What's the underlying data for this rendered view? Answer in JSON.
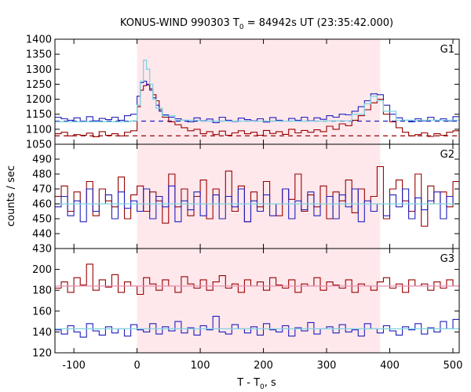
{
  "chart_data": {
    "type": "line",
    "title": "KONUS-WIND 990303 T",
    "title_sub": "0",
    "title_rest": " = 84942s UT (23:35:42.000)",
    "xlabel": "T - T",
    "xlabel_sub": "0",
    "xlabel_rest": ", s",
    "ylabel": "counts / sec",
    "xlim": [
      -130,
      510
    ],
    "x_ticks": [
      -100,
      0,
      100,
      200,
      300,
      400,
      500
    ],
    "x_tick_labels": [
      "-100",
      "0",
      "100",
      "200",
      "300",
      "400",
      "500"
    ],
    "shaded_region": [
      0,
      385
    ],
    "colors": {
      "red": "#990000",
      "blue": "#1f1fbf",
      "fit": "#7fd4e0",
      "fit_red": "#e88fb0",
      "shade": "#ffe8ec"
    },
    "panels": [
      {
        "name": "G1",
        "ylim": [
          1050,
          1400
        ],
        "y_ticks": [
          1050,
          1100,
          1150,
          1200,
          1250,
          1300,
          1350,
          1400
        ],
        "y_tick_labels": [
          "1050",
          "1100",
          "1150",
          "1200",
          "1250",
          "1300",
          "1350",
          "1400"
        ],
        "background_levels": {
          "red": 1078,
          "blue": 1127
        },
        "series": [
          {
            "color": "red",
            "x": [
              -130,
              -120,
              -110,
              -100,
              -90,
              -80,
              -70,
              -60,
              -50,
              -40,
              -30,
              -20,
              -10,
              0,
              5,
              10,
              15,
              20,
              25,
              30,
              35,
              40,
              50,
              60,
              70,
              80,
              90,
              100,
              110,
              120,
              130,
              140,
              150,
              160,
              170,
              180,
              190,
              200,
              210,
              220,
              230,
              240,
              250,
              260,
              270,
              280,
              290,
              300,
              310,
              320,
              330,
              340,
              350,
              360,
              370,
              380,
              390,
              400,
              410,
              420,
              430,
              440,
              450,
              460,
              470,
              480,
              490,
              500
            ],
            "y": [
              1085,
              1090,
              1078,
              1082,
              1080,
              1087,
              1075,
              1092,
              1080,
              1085,
              1078,
              1090,
              1095,
              1175,
              1230,
              1245,
              1250,
              1235,
              1215,
              1195,
              1165,
              1140,
              1125,
              1115,
              1105,
              1095,
              1100,
              1085,
              1092,
              1082,
              1094,
              1080,
              1088,
              1095,
              1085,
              1090,
              1080,
              1096,
              1086,
              1092,
              1083,
              1100,
              1088,
              1096,
              1090,
              1098,
              1092,
              1110,
              1100,
              1118,
              1112,
              1130,
              1145,
              1165,
              1188,
              1200,
              1150,
              1125,
              1105,
              1090,
              1078,
              1082,
              1088,
              1076,
              1085,
              1080,
              1090,
              1095
            ]
          },
          {
            "color": "blue",
            "x": [
              -130,
              -120,
              -110,
              -100,
              -90,
              -80,
              -70,
              -60,
              -50,
              -40,
              -30,
              -20,
              -10,
              0,
              5,
              10,
              15,
              20,
              25,
              30,
              35,
              40,
              50,
              60,
              70,
              80,
              90,
              100,
              110,
              120,
              130,
              140,
              150,
              160,
              170,
              180,
              190,
              200,
              210,
              220,
              230,
              240,
              250,
              260,
              270,
              280,
              290,
              300,
              310,
              320,
              330,
              340,
              350,
              360,
              370,
              380,
              390,
              400,
              410,
              420,
              430,
              440,
              450,
              460,
              470,
              480,
              490,
              500
            ],
            "y": [
              1140,
              1135,
              1130,
              1138,
              1125,
              1142,
              1128,
              1136,
              1132,
              1140,
              1130,
              1145,
              1150,
              1210,
              1255,
              1260,
              1248,
              1230,
              1205,
              1180,
              1160,
              1148,
              1140,
              1135,
              1130,
              1125,
              1138,
              1128,
              1134,
              1122,
              1140,
              1130,
              1126,
              1137,
              1132,
              1128,
              1135,
              1124,
              1139,
              1130,
              1127,
              1136,
              1130,
              1140,
              1128,
              1138,
              1133,
              1145,
              1140,
              1150,
              1148,
              1160,
              1175,
              1195,
              1218,
              1215,
              1180,
              1150,
              1138,
              1130,
              1125,
              1135,
              1128,
              1140,
              1130,
              1135,
              1128,
              1142
            ]
          },
          {
            "color": "fit",
            "x": [
              -130,
              -10,
              0,
              5,
              10,
              15,
              20,
              25,
              30,
              40,
              60,
              100,
              300,
              340,
              360,
              370,
              380,
              390,
              410,
              510
            ],
            "y": [
              1125,
              1128,
              1180,
              1260,
              1330,
              1300,
              1250,
              1200,
              1170,
              1145,
              1130,
              1127,
              1128,
              1150,
              1185,
              1210,
              1195,
              1160,
              1130,
              1127
            ]
          }
        ]
      },
      {
        "name": "G2",
        "ylim": [
          430,
          500
        ],
        "y_ticks": [
          430,
          440,
          450,
          460,
          470,
          480,
          490
        ],
        "y_tick_labels": [
          "430",
          "440",
          "450",
          "460",
          "470",
          "480",
          "490"
        ],
        "background_levels": {
          "red": 459,
          "blue": 460
        },
        "series": [
          {
            "color": "red",
            "x": [
              -130,
              -120,
              -110,
              -100,
              -90,
              -80,
              -70,
              -60,
              -50,
              -40,
              -30,
              -20,
              -10,
              0,
              10,
              20,
              30,
              40,
              50,
              60,
              70,
              80,
              90,
              100,
              110,
              120,
              130,
              140,
              150,
              160,
              170,
              180,
              190,
              200,
              210,
              220,
              230,
              240,
              250,
              260,
              270,
              280,
              290,
              300,
              310,
              320,
              330,
              340,
              350,
              360,
              370,
              380,
              390,
              400,
              410,
              420,
              430,
              440,
              450,
              460,
              470,
              480,
              490,
              500
            ],
            "y": [
              465,
              472,
              455,
              468,
              460,
              475,
              452,
              470,
              462,
              458,
              478,
              450,
              466,
              472,
              455,
              468,
              462,
              447,
              480,
              458,
              470,
              452,
              465,
              476,
              450,
              470,
              460,
              482,
              455,
              472,
              448,
              468,
              458,
              475,
              460,
              452,
              470,
              463,
              480,
              455,
              466,
              458,
              472,
              450,
              468,
              462,
              476,
              454,
              470,
              460,
              465,
              485,
              450,
              470,
              476,
              462,
              455,
              480,
              445,
              472,
              460,
              468,
              458,
              475
            ]
          },
          {
            "color": "blue",
            "x": [
              -130,
              -120,
              -110,
              -100,
              -90,
              -80,
              -70,
              -60,
              -50,
              -40,
              -30,
              -20,
              -10,
              0,
              10,
              20,
              30,
              40,
              50,
              60,
              70,
              80,
              90,
              100,
              110,
              120,
              130,
              140,
              150,
              160,
              170,
              180,
              190,
              200,
              210,
              220,
              230,
              240,
              250,
              260,
              270,
              280,
              290,
              300,
              310,
              320,
              330,
              340,
              350,
              360,
              370,
              380,
              390,
              400,
              410,
              420,
              430,
              440,
              450,
              460,
              470,
              480,
              490,
              500
            ],
            "y": [
              458,
              465,
              452,
              462,
              448,
              470,
              455,
              460,
              466,
              450,
              468,
              457,
              462,
              455,
              470,
              450,
              465,
              458,
              472,
              448,
              462,
              456,
              468,
              452,
              460,
              466,
              450,
              465,
              458,
              470,
              448,
              462,
              455,
              466,
              452,
              460,
              470,
              450,
              462,
              456,
              468,
              452,
              460,
              465,
              450,
              466,
              458,
              470,
              448,
              462,
              455,
              460,
              452,
              466,
              458,
              470,
              450,
              464,
              456,
              462,
              468,
              450,
              465,
              460
            ]
          },
          {
            "color": "fit",
            "x": [
              -130,
              510
            ],
            "y": [
              460,
              460
            ]
          }
        ]
      },
      {
        "name": "G3",
        "ylim": [
          120,
          220
        ],
        "y_ticks": [
          120,
          140,
          160,
          180,
          200
        ],
        "y_tick_labels": [
          "120",
          "140",
          "160",
          "180",
          "200"
        ],
        "background_levels": {
          "red": 184,
          "blue": 143
        },
        "series": [
          {
            "color": "red",
            "x": [
              -130,
              -120,
              -110,
              -100,
              -90,
              -80,
              -70,
              -60,
              -50,
              -40,
              -30,
              -20,
              -10,
              0,
              10,
              20,
              30,
              40,
              50,
              60,
              70,
              80,
              90,
              100,
              110,
              120,
              130,
              140,
              150,
              160,
              170,
              180,
              190,
              200,
              210,
              220,
              230,
              240,
              250,
              260,
              270,
              280,
              290,
              300,
              310,
              320,
              330,
              340,
              350,
              360,
              370,
              380,
              390,
              400,
              410,
              420,
              430,
              440,
              450,
              460,
              470,
              480,
              490,
              500
            ],
            "y": [
              182,
              188,
              178,
              192,
              185,
              205,
              180,
              190,
              183,
              195,
              178,
              188,
              184,
              176,
              192,
              186,
              180,
              190,
              184,
              178,
              193,
              186,
              182,
              190,
              180,
              188,
              194,
              182,
              186,
              178,
              190,
              184,
              188,
              180,
              192,
              185,
              182,
              190,
              178,
              186,
              184,
              192,
              180,
              188,
              185,
              182,
              190,
              178,
              186,
              184,
              180,
              188,
              192,
              182,
              186,
              178,
              190,
              184,
              186,
              180,
              188,
              182,
              190,
              184
            ]
          },
          {
            "color": "blue",
            "x": [
              -130,
              -120,
              -110,
              -100,
              -90,
              -80,
              -70,
              -60,
              -50,
              -40,
              -30,
              -20,
              -10,
              0,
              10,
              20,
              30,
              40,
              50,
              60,
              70,
              80,
              90,
              100,
              110,
              120,
              130,
              140,
              150,
              160,
              170,
              180,
              190,
              200,
              210,
              220,
              230,
              240,
              250,
              260,
              270,
              280,
              290,
              300,
              310,
              320,
              330,
              340,
              350,
              360,
              370,
              380,
              390,
              400,
              410,
              420,
              430,
              440,
              450,
              460,
              470,
              480,
              490,
              500
            ],
            "y": [
              142,
              138,
              146,
              140,
              135,
              148,
              141,
              137,
              145,
              139,
              143,
              136,
              147,
              142,
              140,
              148,
              138,
              145,
              141,
              150,
              139,
              144,
              137,
              146,
              142,
              155,
              140,
              138,
              147,
              143,
              139,
              145,
              137,
              148,
              142,
              140,
              146,
              136,
              144,
              141,
              149,
              138,
              143,
              145,
              139,
              147,
              140,
              142,
              136,
              148,
              143,
              139,
              146,
              141,
              137,
              145,
              142,
              148,
              138,
              144,
              140,
              150,
              143,
              152
            ]
          },
          {
            "color": "fit",
            "x": [
              -130,
              510
            ],
            "y": [
              143,
              143
            ]
          },
          {
            "color": "fit_red",
            "x": [
              -130,
              510
            ],
            "y": [
              184,
              184
            ]
          }
        ]
      }
    ]
  }
}
